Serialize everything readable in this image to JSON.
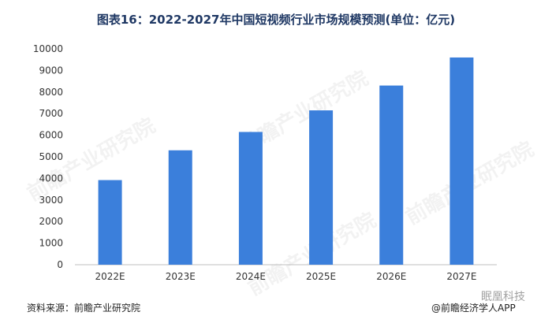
{
  "chart_data": {
    "type": "bar",
    "title": "图表16：2022-2027年中国短视频行业市场规模预测(单位：亿元)",
    "categories": [
      "2022E",
      "2023E",
      "2024E",
      "2025E",
      "2026E",
      "2027E"
    ],
    "values": [
      3920,
      5300,
      6150,
      7150,
      8300,
      9600
    ],
    "xlabel": "",
    "ylabel": "",
    "ylim": [
      0,
      10000
    ],
    "yticks": [
      0,
      1000,
      2000,
      3000,
      4000,
      5000,
      6000,
      7000,
      8000,
      9000,
      10000
    ],
    "grid": false,
    "bar_color": "#3b7fdb"
  },
  "source": "资料来源：前瞻产业研究院",
  "credit": "@前瞻经济学人APP",
  "overlay": "眠凰科技",
  "watermark": "前瞻产业研究院"
}
